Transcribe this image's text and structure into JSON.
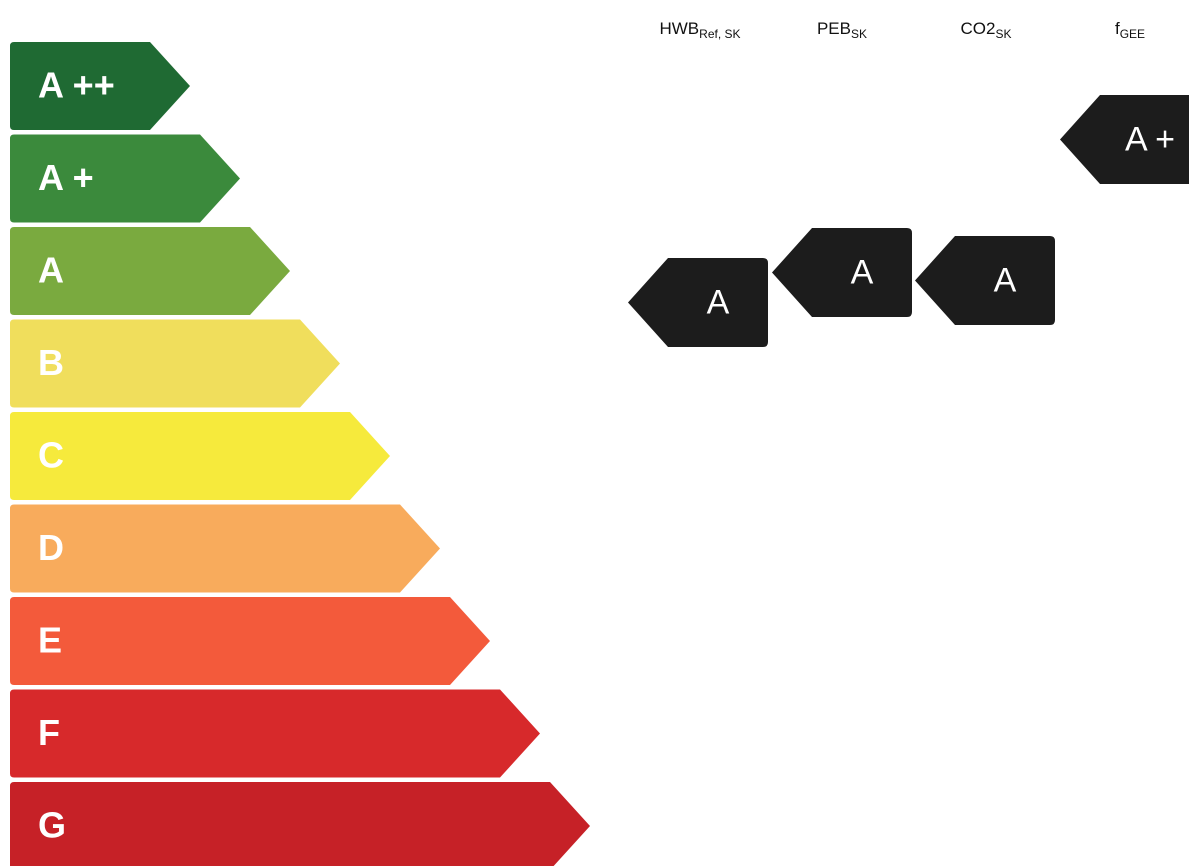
{
  "classes": [
    {
      "label": "A ++",
      "color": "#1f6a33"
    },
    {
      "label": "A +",
      "color": "#3b8a3c"
    },
    {
      "label": "A",
      "color": "#7aaa3f"
    },
    {
      "label": "B",
      "color": "#f0de5c"
    },
    {
      "label": "C",
      "color": "#f6ea3c"
    },
    {
      "label": "D",
      "color": "#f8ab5c"
    },
    {
      "label": "E",
      "color": "#f35a3b"
    },
    {
      "label": "F",
      "color": "#d7292b"
    },
    {
      "label": "G",
      "color": "#c62127"
    }
  ],
  "columns": [
    {
      "name": "HWB",
      "sub": "Ref, SK",
      "rating": "A"
    },
    {
      "name": "PEB",
      "sub": "SK",
      "rating": "A"
    },
    {
      "name": "CO2",
      "sub": "SK",
      "rating": "A"
    },
    {
      "name": "f",
      "sub": "GEE",
      "rating": "A +"
    }
  ]
}
